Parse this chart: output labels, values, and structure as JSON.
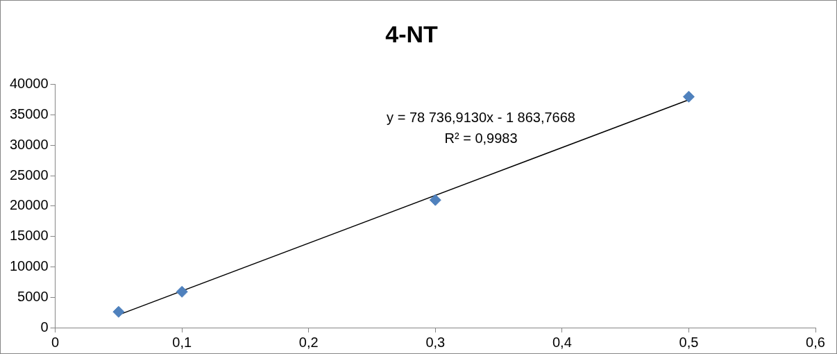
{
  "chart_data": {
    "type": "scatter",
    "title": "4-NT",
    "series": [
      {
        "type": "scatter",
        "color": "#4f81bd",
        "x": [
          0.05,
          0.1,
          0.3,
          0.5
        ],
        "values": [
          2600,
          5900,
          21000,
          38000
        ],
        "marker": "diamond"
      },
      {
        "type": "line",
        "color": "#000000",
        "x": [
          0.05,
          0.5
        ],
        "values": [
          2100,
          37500
        ],
        "marker": "none"
      }
    ],
    "xlim": [
      0,
      0.6
    ],
    "xticks": [
      0,
      {
        "value": 0.1,
        "label": "0,1"
      },
      {
        "value": 0.2,
        "label": "0,2"
      },
      {
        "value": 0.3,
        "label": "0,3"
      },
      {
        "value": 0.4,
        "label": "0,4"
      },
      {
        "value": 0.5,
        "label": "0,5"
      },
      {
        "value": 0.6,
        "label": "0,6"
      }
    ],
    "ylim": [
      0,
      40000
    ],
    "yticks": [
      0,
      5000,
      10000,
      15000,
      20000,
      25000,
      30000,
      35000,
      40000
    ],
    "annotations": [
      "y = 78 736,9130x - 1 863,7668",
      "R² = 0,9983"
    ],
    "grid": false,
    "legend": false
  }
}
